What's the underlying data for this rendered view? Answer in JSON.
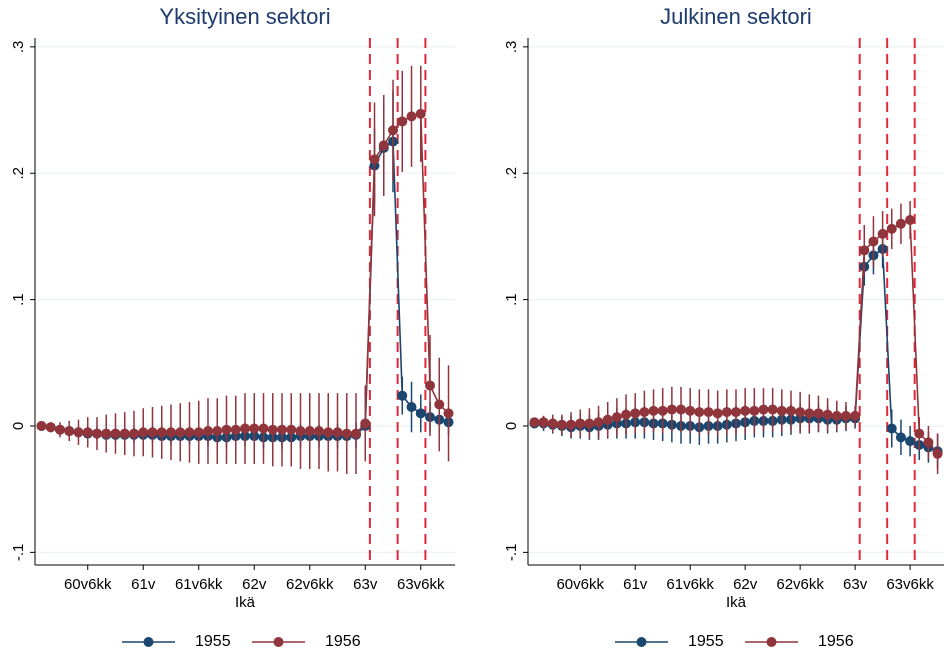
{
  "chart_data": [
    {
      "type": "line",
      "title": "Yksityinen sektori",
      "x_label": "Ikä",
      "x": [
        721,
        722,
        723,
        724,
        725,
        726,
        727,
        728,
        729,
        730,
        731,
        732,
        733,
        734,
        735,
        736,
        737,
        738,
        739,
        740,
        741,
        742,
        743,
        744,
        745,
        746,
        747,
        748,
        749,
        750,
        751,
        752,
        753,
        754,
        755,
        756,
        757,
        758,
        759,
        760,
        761,
        762,
        763,
        764,
        765
      ],
      "xlim": [
        720.3,
        765.7
      ],
      "xticks": [
        {
          "value": 726,
          "label": "60v6kk"
        },
        {
          "value": 732,
          "label": "61v"
        },
        {
          "value": 738,
          "label": "61v6kk"
        },
        {
          "value": 744,
          "label": "62v"
        },
        {
          "value": 750,
          "label": "62v6kk"
        },
        {
          "value": 756,
          "label": "63v"
        },
        {
          "value": 762,
          "label": "63v6kk"
        }
      ],
      "ylim": [
        -0.11,
        0.307
      ],
      "yticks": [
        {
          "value": -0.1,
          "label": "-.1"
        },
        0,
        {
          "value": 0.1,
          "label": ".1"
        },
        {
          "value": 0.2,
          "label": ".2"
        },
        {
          "value": 0.3,
          "label": ".3"
        }
      ],
      "grid": true,
      "vlines": [
        756.5,
        759.5,
        762.5
      ],
      "vline_color": "#e0283a",
      "series": [
        {
          "name": "1955",
          "color": "#1a476f",
          "values": [
            0,
            -0.001,
            -0.003,
            -0.004,
            -0.005,
            -0.006,
            -0.006,
            -0.007,
            -0.007,
            -0.007,
            -0.007,
            -0.007,
            -0.007,
            -0.008,
            -0.008,
            -0.008,
            -0.008,
            -0.008,
            -0.008,
            -0.009,
            -0.009,
            -0.008,
            -0.008,
            -0.008,
            -0.009,
            -0.009,
            -0.009,
            -0.009,
            -0.008,
            -0.008,
            -0.008,
            -0.008,
            -0.008,
            -0.008,
            -0.007,
            0,
            0.206,
            0.22,
            0.225,
            0.024,
            0.015,
            0.01,
            0.007,
            0.005,
            0.003
          ],
          "errors": [
            0.001,
            0.002,
            0.003,
            0.003,
            0.004,
            0.004,
            0.005,
            0.005,
            0.005,
            0.006,
            0.006,
            0.006,
            0.006,
            0.007,
            0.007,
            0.007,
            0.007,
            0.007,
            0.008,
            0.008,
            0.008,
            0.008,
            0.008,
            0.008,
            0.009,
            0.009,
            0.009,
            0.009,
            0.009,
            0.009,
            0.009,
            0.01,
            0.01,
            0.01,
            0.01,
            0.01,
            0.03,
            0.035,
            0.04,
            0.015,
            0.02,
            0.015,
            0.012,
            0.01,
            0.01
          ]
        },
        {
          "name": "1956",
          "color": "#90353b",
          "values": [
            0,
            -0.001,
            -0.003,
            -0.004,
            -0.005,
            -0.005,
            -0.006,
            -0.006,
            -0.006,
            -0.006,
            -0.006,
            -0.005,
            -0.005,
            -0.005,
            -0.005,
            -0.005,
            -0.005,
            -0.005,
            -0.004,
            -0.004,
            -0.003,
            -0.003,
            -0.002,
            -0.002,
            -0.002,
            -0.003,
            -0.003,
            -0.003,
            -0.004,
            -0.004,
            -0.004,
            -0.005,
            -0.005,
            -0.006,
            -0.006,
            0.002,
            0.211,
            0.222,
            0.234,
            0.241,
            0.245,
            0.247,
            0.032,
            0.017,
            0.01
          ],
          "errors": [
            0.002,
            0.004,
            0.006,
            0.008,
            0.01,
            0.012,
            0.013,
            0.015,
            0.016,
            0.017,
            0.018,
            0.019,
            0.02,
            0.021,
            0.022,
            0.023,
            0.024,
            0.025,
            0.026,
            0.026,
            0.027,
            0.027,
            0.028,
            0.028,
            0.028,
            0.029,
            0.029,
            0.029,
            0.03,
            0.03,
            0.03,
            0.031,
            0.031,
            0.032,
            0.032,
            0.03,
            0.045,
            0.04,
            0.04,
            0.04,
            0.04,
            0.038,
            0.04,
            0.037,
            0.038
          ]
        }
      ]
    },
    {
      "type": "line",
      "title": "Julkinen sektori",
      "x_label": "Ikä",
      "x": [
        721,
        722,
        723,
        724,
        725,
        726,
        727,
        728,
        729,
        730,
        731,
        732,
        733,
        734,
        735,
        736,
        737,
        738,
        739,
        740,
        741,
        742,
        743,
        744,
        745,
        746,
        747,
        748,
        749,
        750,
        751,
        752,
        753,
        754,
        755,
        756,
        757,
        758,
        759,
        760,
        761,
        762,
        763,
        764,
        765
      ],
      "xlim": [
        720.3,
        765.7
      ],
      "xticks": [
        {
          "value": 726,
          "label": "60v6kk"
        },
        {
          "value": 732,
          "label": "61v"
        },
        {
          "value": 738,
          "label": "61v6kk"
        },
        {
          "value": 744,
          "label": "62v"
        },
        {
          "value": 750,
          "label": "62v6kk"
        },
        {
          "value": 756,
          "label": "63v"
        },
        {
          "value": 762,
          "label": "63v6kk"
        }
      ],
      "ylim": [
        -0.11,
        0.307
      ],
      "yticks": [
        {
          "value": -0.1,
          "label": "-.1"
        },
        0,
        {
          "value": 0.1,
          "label": ".1"
        },
        {
          "value": 0.2,
          "label": ".2"
        },
        {
          "value": 0.3,
          "label": ".3"
        }
      ],
      "grid": true,
      "vlines": [
        756.5,
        759.5,
        762.5
      ],
      "vline_color": "#e0283a",
      "series": [
        {
          "name": "1955",
          "color": "#1a476f",
          "values": [
            0.002,
            0.002,
            0.001,
            0,
            -0.001,
            0,
            -0.001,
            0,
            0.001,
            0.002,
            0.002,
            0.003,
            0.003,
            0.002,
            0.002,
            0.001,
            0,
            0,
            -0.001,
            0,
            0,
            0.001,
            0.002,
            0.003,
            0.004,
            0.004,
            0.004,
            0.005,
            0.005,
            0.006,
            0.006,
            0.006,
            0.005,
            0.005,
            0.006,
            0.006,
            0.126,
            0.135,
            0.14,
            -0.002,
            -0.009,
            -0.012,
            -0.015,
            -0.017,
            -0.02
          ],
          "errors": [
            0.004,
            0.006,
            0.007,
            0.008,
            0.009,
            0.01,
            0.01,
            0.011,
            0.011,
            0.012,
            0.012,
            0.013,
            0.013,
            0.013,
            0.014,
            0.014,
            0.014,
            0.014,
            0.014,
            0.014,
            0.014,
            0.014,
            0.014,
            0.014,
            0.013,
            0.013,
            0.013,
            0.013,
            0.012,
            0.012,
            0.012,
            0.011,
            0.011,
            0.01,
            0.01,
            0.008,
            0.015,
            0.015,
            0.015,
            0.015,
            0.014,
            0.012,
            0.012,
            0.012,
            0.014
          ]
        },
        {
          "name": "1956",
          "color": "#90353b",
          "values": [
            0.003,
            0.003,
            0.002,
            0.001,
            0.001,
            0.002,
            0.002,
            0.003,
            0.005,
            0.007,
            0.009,
            0.01,
            0.011,
            0.012,
            0.012,
            0.013,
            0.013,
            0.012,
            0.011,
            0.011,
            0.01,
            0.011,
            0.011,
            0.012,
            0.012,
            0.013,
            0.013,
            0.012,
            0.012,
            0.011,
            0.01,
            0.01,
            0.009,
            0.008,
            0.008,
            0.008,
            0.139,
            0.146,
            0.152,
            0.156,
            0.16,
            0.163,
            -0.006,
            -0.013,
            -0.022
          ],
          "errors": [
            0.003,
            0.005,
            0.007,
            0.008,
            0.01,
            0.011,
            0.012,
            0.013,
            0.014,
            0.015,
            0.016,
            0.016,
            0.017,
            0.017,
            0.018,
            0.018,
            0.018,
            0.018,
            0.018,
            0.018,
            0.018,
            0.018,
            0.018,
            0.018,
            0.018,
            0.017,
            0.017,
            0.017,
            0.016,
            0.016,
            0.015,
            0.014,
            0.013,
            0.012,
            0.011,
            0.008,
            0.02,
            0.02,
            0.018,
            0.016,
            0.016,
            0.015,
            0.013,
            0.013,
            0.016
          ]
        }
      ]
    }
  ]
}
